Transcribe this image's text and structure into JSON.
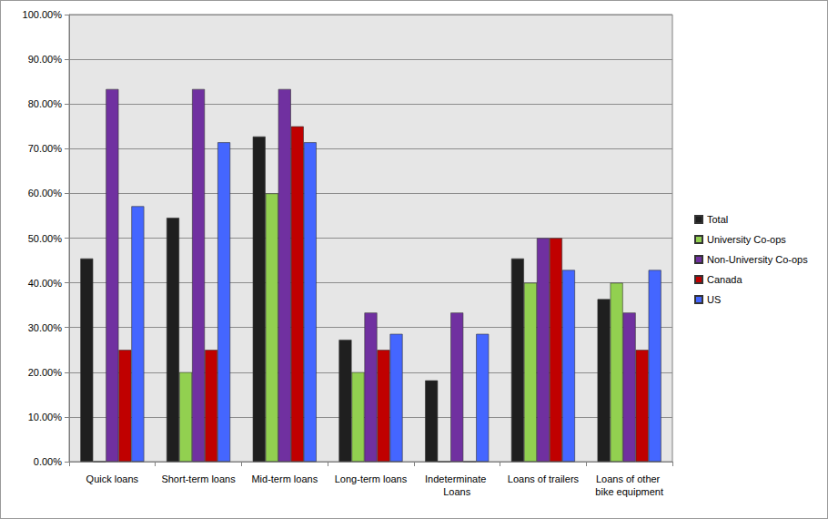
{
  "chart_data": {
    "type": "bar",
    "categories": [
      "Quick loans",
      "Short-term loans",
      "Mid-term loans",
      "Long-term loans",
      "Indeterminate Loans",
      "Loans of trailers",
      "Loans of other bike equipment"
    ],
    "series": [
      {
        "name": "Total",
        "color": "#1f1f1f",
        "values": [
          45.45,
          54.55,
          72.73,
          27.27,
          18.18,
          45.45,
          36.36
        ]
      },
      {
        "name": "University Co-ops",
        "color": "#92d050",
        "values": [
          0,
          20,
          60,
          20,
          0,
          40,
          40
        ]
      },
      {
        "name": "Non-University Co-ops",
        "color": "#7030a0",
        "values": [
          83.33,
          83.33,
          83.33,
          33.33,
          33.33,
          50,
          33.33
        ]
      },
      {
        "name": "Canada",
        "color": "#c00000",
        "values": [
          25,
          25,
          75,
          25,
          0,
          50,
          25
        ]
      },
      {
        "name": "US",
        "color": "#4466ff",
        "values": [
          57.14,
          71.43,
          71.43,
          28.57,
          28.57,
          42.86,
          42.86
        ]
      }
    ],
    "ylim": [
      0,
      100
    ],
    "yticks": [
      {
        "value": 0,
        "label": "0.00%"
      },
      {
        "value": 10,
        "label": "10.00%"
      },
      {
        "value": 20,
        "label": "20.00%"
      },
      {
        "value": 30,
        "label": "30.00%"
      },
      {
        "value": 40,
        "label": "40.00%"
      },
      {
        "value": 50,
        "label": "50.00%"
      },
      {
        "value": 60,
        "label": "60.00%"
      },
      {
        "value": 70,
        "label": "70.00%"
      },
      {
        "value": 80,
        "label": "80.00%"
      },
      {
        "value": 90,
        "label": "90.00%"
      },
      {
        "value": 100,
        "label": "100.00%"
      }
    ],
    "grid": true,
    "legend": "right"
  }
}
